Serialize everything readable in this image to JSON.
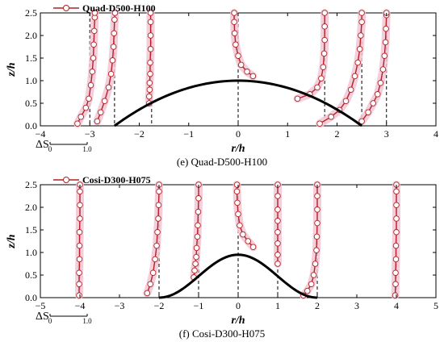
{
  "chart_data": [
    {
      "type": "line",
      "caption": "(e) Quad-D500-H100",
      "legend": "Quad-D500-H100",
      "xlabel": "r/h",
      "ylabel": "z/h",
      "xlim": [
        -4,
        4
      ],
      "ylim": [
        0,
        2.5
      ],
      "xticks": [
        -4,
        -3,
        -2,
        -1,
        0,
        1,
        2,
        3,
        4
      ],
      "yticks": [
        0.0,
        0.5,
        1.0,
        1.5,
        2.0,
        2.5
      ],
      "ytick_labels": [
        "0.0",
        "0.5",
        "1.0",
        "1.5",
        "2.0",
        "2.5"
      ],
      "scale_bar": {
        "label": "ΔS",
        "min_label": "0",
        "max_label": "1.0"
      },
      "colors": {
        "profile": "#b22222",
        "marker_fill": "#ffffff",
        "band": "#f2c6d6",
        "hill": "#000000"
      },
      "hill": {
        "shape": "quadratic",
        "half_width": 2.5,
        "height": 1.0
      },
      "reference_lines_x": [
        -3,
        -2.5,
        -1.75,
        0,
        1.75,
        2.5,
        3
      ],
      "series": [
        {
          "x0": -3,
          "points": [
            [
              -3.25,
              0.05
            ],
            [
              -3.18,
              0.2
            ],
            [
              -3.08,
              0.4
            ],
            [
              -3.02,
              0.6
            ],
            [
              -2.98,
              0.9
            ],
            [
              -2.95,
              1.2
            ],
            [
              -2.93,
              1.5
            ],
            [
              -2.92,
              1.8
            ],
            [
              -2.91,
              2.1
            ],
            [
              -2.9,
              2.4
            ],
            [
              -2.9,
              2.5
            ]
          ]
        },
        {
          "x0": -2.5,
          "points": [
            [
              -2.85,
              0.1
            ],
            [
              -2.78,
              0.3
            ],
            [
              -2.7,
              0.55
            ],
            [
              -2.62,
              0.85
            ],
            [
              -2.57,
              1.15
            ],
            [
              -2.54,
              1.45
            ],
            [
              -2.52,
              1.75
            ],
            [
              -2.51,
              2.05
            ],
            [
              -2.5,
              2.35
            ],
            [
              -2.49,
              2.5
            ]
          ]
        },
        {
          "x0": -1.75,
          "points": [
            [
              -1.8,
              0.5
            ],
            [
              -1.8,
              0.65
            ],
            [
              -1.79,
              0.8
            ],
            [
              -1.79,
              0.95
            ],
            [
              -1.78,
              1.15
            ],
            [
              -1.78,
              1.4
            ],
            [
              -1.77,
              1.7
            ],
            [
              -1.77,
              2.0
            ],
            [
              -1.77,
              2.3
            ],
            [
              -1.77,
              2.5
            ]
          ]
        },
        {
          "x0": 0,
          "points": [
            [
              0.3,
              1.1
            ],
            [
              0.18,
              1.2
            ],
            [
              0.06,
              1.35
            ],
            [
              0.0,
              1.55
            ],
            [
              -0.05,
              1.8
            ],
            [
              -0.07,
              2.05
            ],
            [
              -0.08,
              2.3
            ],
            [
              -0.08,
              2.5
            ]
          ]
        },
        {
          "x0": 1.75,
          "points": [
            [
              1.2,
              0.6
            ],
            [
              1.45,
              0.7
            ],
            [
              1.6,
              0.85
            ],
            [
              1.68,
              1.05
            ],
            [
              1.72,
              1.3
            ],
            [
              1.74,
              1.6
            ],
            [
              1.75,
              1.9
            ],
            [
              1.75,
              2.2
            ],
            [
              1.75,
              2.5
            ]
          ]
        },
        {
          "x0": 2.5,
          "points": [
            [
              1.65,
              0.05
            ],
            [
              1.88,
              0.2
            ],
            [
              2.05,
              0.35
            ],
            [
              2.18,
              0.55
            ],
            [
              2.28,
              0.8
            ],
            [
              2.36,
              1.1
            ],
            [
              2.42,
              1.4
            ],
            [
              2.46,
              1.7
            ],
            [
              2.48,
              2.0
            ],
            [
              2.5,
              2.3
            ],
            [
              2.5,
              2.5
            ]
          ]
        },
        {
          "x0": 3,
          "points": [
            [
              2.5,
              0.1
            ],
            [
              2.63,
              0.3
            ],
            [
              2.73,
              0.5
            ],
            [
              2.82,
              0.7
            ],
            [
              2.88,
              0.95
            ],
            [
              2.93,
              1.25
            ],
            [
              2.96,
              1.55
            ],
            [
              2.98,
              1.85
            ],
            [
              2.99,
              2.15
            ],
            [
              3.0,
              2.45
            ],
            [
              3.0,
              2.5
            ]
          ]
        }
      ]
    },
    {
      "type": "line",
      "caption": "(f) Cosi-D300-H075",
      "legend": "Cosi-D300-H075",
      "xlabel": "r/h",
      "ylabel": "z/h",
      "xlim": [
        -5,
        5
      ],
      "ylim": [
        0,
        2.5
      ],
      "xticks": [
        -5,
        -4,
        -3,
        -2,
        -1,
        0,
        1,
        2,
        3,
        4,
        5
      ],
      "yticks": [
        0.0,
        0.5,
        1.0,
        1.5,
        2.0,
        2.5
      ],
      "ytick_labels": [
        "0.0",
        "0.5",
        "1.0",
        "1.5",
        "2.0",
        "2.5"
      ],
      "scale_bar": {
        "label": "ΔS",
        "min_label": "0",
        "max_label": "1.0"
      },
      "colors": {
        "profile": "#b22222",
        "marker_fill": "#ffffff",
        "band": "#f2c6d6",
        "hill": "#000000"
      },
      "hill": {
        "shape": "cosine",
        "half_width": 2.0,
        "height": 0.95
      },
      "reference_lines_x": [
        -4,
        -2,
        -1,
        0,
        1,
        2,
        4
      ],
      "series": [
        {
          "x0": -4,
          "points": [
            [
              -4.02,
              0.05
            ],
            [
              -4.02,
              0.3
            ],
            [
              -4.02,
              0.55
            ],
            [
              -4.01,
              0.85
            ],
            [
              -4.01,
              1.15
            ],
            [
              -4.01,
              1.45
            ],
            [
              -4.0,
              1.75
            ],
            [
              -4.0,
              2.05
            ],
            [
              -4.0,
              2.35
            ],
            [
              -4.0,
              2.5
            ]
          ]
        },
        {
          "x0": -2,
          "points": [
            [
              -2.3,
              0.1
            ],
            [
              -2.22,
              0.3
            ],
            [
              -2.15,
              0.55
            ],
            [
              -2.1,
              0.85
            ],
            [
              -2.06,
              1.15
            ],
            [
              -2.04,
              1.45
            ],
            [
              -2.02,
              1.75
            ],
            [
              -2.01,
              2.05
            ],
            [
              -2.0,
              2.35
            ],
            [
              -2.0,
              2.5
            ]
          ]
        },
        {
          "x0": -1,
          "points": [
            [
              -1.12,
              0.45
            ],
            [
              -1.1,
              0.6
            ],
            [
              -1.08,
              0.75
            ],
            [
              -1.06,
              0.9
            ],
            [
              -1.05,
              1.1
            ],
            [
              -1.03,
              1.35
            ],
            [
              -1.02,
              1.6
            ],
            [
              -1.01,
              1.9
            ],
            [
              -1.0,
              2.2
            ],
            [
              -1.0,
              2.5
            ]
          ]
        },
        {
          "x0": 0,
          "points": [
            [
              0.38,
              1.12
            ],
            [
              0.25,
              1.25
            ],
            [
              0.12,
              1.4
            ],
            [
              0.04,
              1.6
            ],
            [
              0.0,
              1.85
            ],
            [
              -0.02,
              2.1
            ],
            [
              -0.03,
              2.35
            ],
            [
              -0.03,
              2.5
            ]
          ]
        },
        {
          "x0": 1,
          "points": [
            [
              1.0,
              0.75
            ],
            [
              1.0,
              0.95
            ],
            [
              1.0,
              1.2
            ],
            [
              1.0,
              1.45
            ],
            [
              1.0,
              1.7
            ],
            [
              1.0,
              1.95
            ],
            [
              1.0,
              2.25
            ],
            [
              1.0,
              2.5
            ]
          ]
        },
        {
          "x0": 2,
          "points": [
            [
              1.65,
              0.05
            ],
            [
              1.75,
              0.15
            ],
            [
              1.85,
              0.3
            ],
            [
              1.91,
              0.5
            ],
            [
              1.95,
              0.75
            ],
            [
              1.98,
              1.05
            ],
            [
              1.99,
              1.35
            ],
            [
              2.0,
              1.65
            ],
            [
              2.0,
              1.95
            ],
            [
              2.0,
              2.25
            ],
            [
              2.0,
              2.5
            ]
          ]
        },
        {
          "x0": 4,
          "points": [
            [
              3.97,
              0.05
            ],
            [
              3.98,
              0.3
            ],
            [
              3.98,
              0.55
            ],
            [
              3.99,
              0.85
            ],
            [
              3.99,
              1.15
            ],
            [
              4.0,
              1.45
            ],
            [
              4.0,
              1.75
            ],
            [
              4.0,
              2.05
            ],
            [
              4.0,
              2.35
            ],
            [
              4.0,
              2.5
            ]
          ]
        }
      ]
    }
  ]
}
